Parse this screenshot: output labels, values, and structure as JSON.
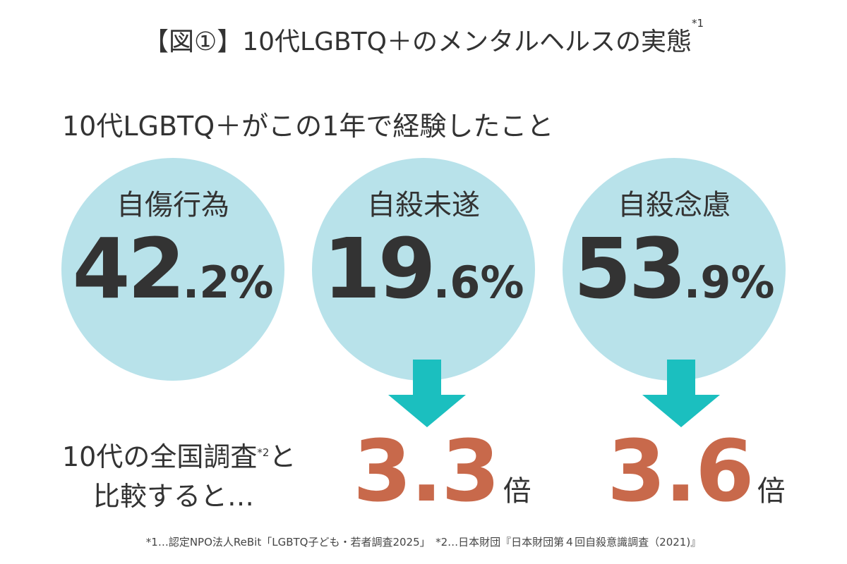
{
  "title": {
    "text": "【図①】10代LGBTQ＋のメンタルヘルスの実態",
    "note": "*1"
  },
  "subtitle": "10代LGBTQ＋がこの1年で経験したこと",
  "stats": [
    {
      "label": "自傷行為",
      "int": "42",
      "dec": ".2",
      "unit": "%"
    },
    {
      "label": "自殺未遂",
      "int": "19",
      "dec": ".6",
      "unit": "%"
    },
    {
      "label": "自殺念慮",
      "int": "53",
      "dec": ".9",
      "unit": "%"
    }
  ],
  "compare": {
    "line1": "10代の全国調査",
    "note": "*2",
    "line1b": "と",
    "line2": "比較すると…"
  },
  "multipliers": [
    {
      "value": "3.3",
      "unit": "倍"
    },
    {
      "value": "3.6",
      "unit": "倍"
    }
  ],
  "footnotes": "*1…認定NPO法人ReBit「LGBTQ子ども・若者調査2025」　*2…日本財団『日本財団第４回自殺意識調査（2021)』",
  "colors": {
    "circle": "#b8e2ea",
    "arrow": "#1bbfbf",
    "accent": "#c8694b"
  }
}
